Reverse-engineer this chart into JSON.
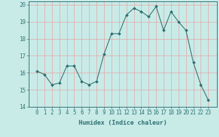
{
  "x": [
    0,
    1,
    2,
    3,
    4,
    5,
    6,
    7,
    8,
    9,
    10,
    11,
    12,
    13,
    14,
    15,
    16,
    17,
    18,
    19,
    20,
    21,
    22,
    23
  ],
  "y": [
    16.1,
    15.9,
    15.3,
    15.4,
    16.4,
    16.4,
    15.5,
    15.3,
    15.5,
    17.1,
    18.3,
    18.3,
    19.4,
    19.8,
    19.6,
    19.3,
    19.9,
    18.5,
    19.6,
    19.0,
    18.5,
    16.6,
    15.3,
    14.4
  ],
  "line_color": "#2d6e6e",
  "marker": "D",
  "marker_size": 2.0,
  "bg_color": "#c8ebe8",
  "grid_color": "#e8a0a0",
  "xlabel": "Humidex (Indice chaleur)",
  "ylim": [
    14,
    20.2
  ],
  "yticks": [
    14,
    15,
    16,
    17,
    18,
    19,
    20
  ],
  "xticks": [
    0,
    1,
    2,
    3,
    4,
    5,
    6,
    7,
    8,
    9,
    10,
    11,
    12,
    13,
    14,
    15,
    16,
    17,
    18,
    19,
    20,
    21,
    22,
    23
  ],
  "tick_color": "#2d6e6e",
  "label_fontsize": 6.5,
  "tick_fontsize": 5.5,
  "line_width": 0.8
}
